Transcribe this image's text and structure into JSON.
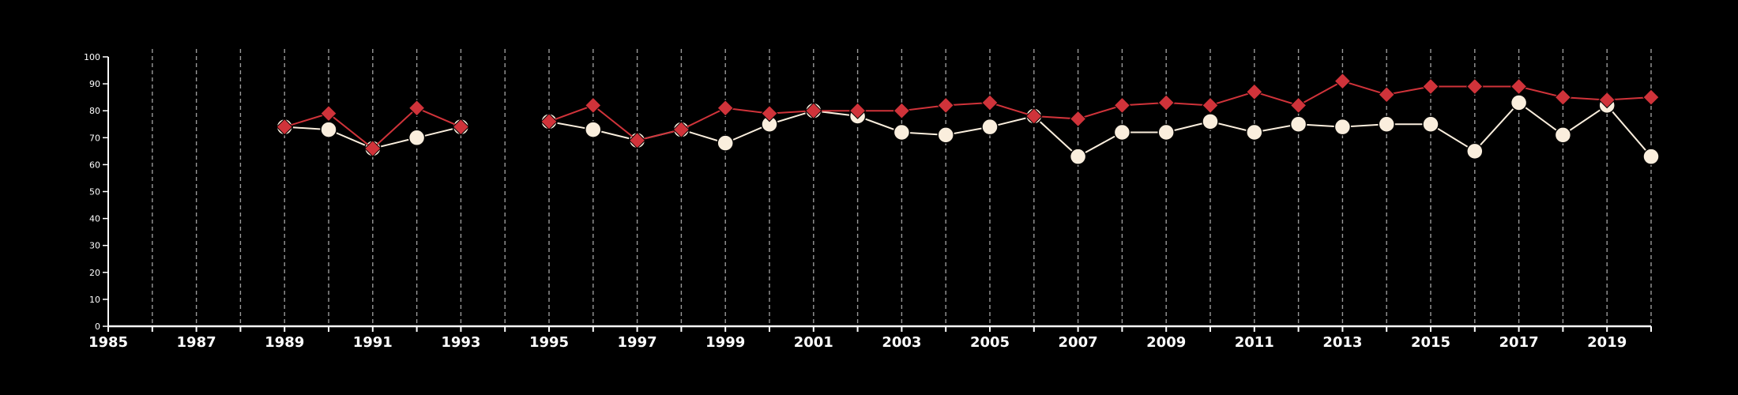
{
  "chart_data": {
    "type": "line",
    "title": "",
    "xlabel": "",
    "ylabel": "",
    "xlim": [
      1985,
      2020
    ],
    "ylim": [
      0,
      100
    ],
    "y_ticks": [
      0,
      10,
      20,
      30,
      40,
      50,
      60,
      70,
      80,
      90,
      100
    ],
    "x_ticks": [
      1985,
      1987,
      1989,
      1991,
      1993,
      1995,
      1997,
      1999,
      2001,
      2003,
      2005,
      2007,
      2009,
      2011,
      2013,
      2015,
      2017,
      2019
    ],
    "x_tick_labels": [
      "1985",
      "1987",
      "1989",
      "1991",
      "1993",
      "1995",
      "1997",
      "1999",
      "2001",
      "2003",
      "2005",
      "2007",
      "2009",
      "2011",
      "2013",
      "2015",
      "2017",
      "2019"
    ],
    "grid": "vertical dashed lines at every year",
    "background": "#000000",
    "legend": "none",
    "series": [
      {
        "marker": "diamond",
        "color": "#d0333a",
        "x": [
          1989,
          1990,
          1991,
          1992,
          1993,
          null,
          1995,
          1996,
          1997,
          1998,
          1999,
          2000,
          2001,
          2002,
          2003,
          2004,
          2005,
          2006,
          2007,
          2008,
          2009,
          2010,
          2011,
          2012,
          2013,
          2014,
          2015,
          2016,
          2017,
          2018,
          2019,
          2020
        ],
        "values": [
          74,
          79,
          66,
          81,
          74,
          null,
          76,
          82,
          69,
          73,
          81,
          79,
          80,
          80,
          80,
          82,
          83,
          78,
          77,
          82,
          83,
          82,
          87,
          82,
          91,
          86,
          89,
          89,
          89,
          85,
          84,
          85
        ]
      },
      {
        "marker": "circle",
        "color": "#faeedd",
        "x": [
          1989,
          1990,
          1991,
          1992,
          1993,
          null,
          1995,
          1996,
          1997,
          1998,
          1999,
          2000,
          2001,
          2002,
          2003,
          2004,
          2005,
          2006,
          2007,
          2008,
          2009,
          2010,
          2011,
          2012,
          2013,
          2014,
          2015,
          2016,
          2017,
          2018,
          2019,
          2020
        ],
        "values": [
          74,
          73,
          66,
          70,
          74,
          null,
          76,
          73,
          69,
          73,
          68,
          75,
          80,
          78,
          72,
          71,
          74,
          78,
          63,
          72,
          72,
          76,
          72,
          75,
          74,
          75,
          75,
          65,
          83,
          71,
          82,
          63
        ]
      }
    ]
  }
}
